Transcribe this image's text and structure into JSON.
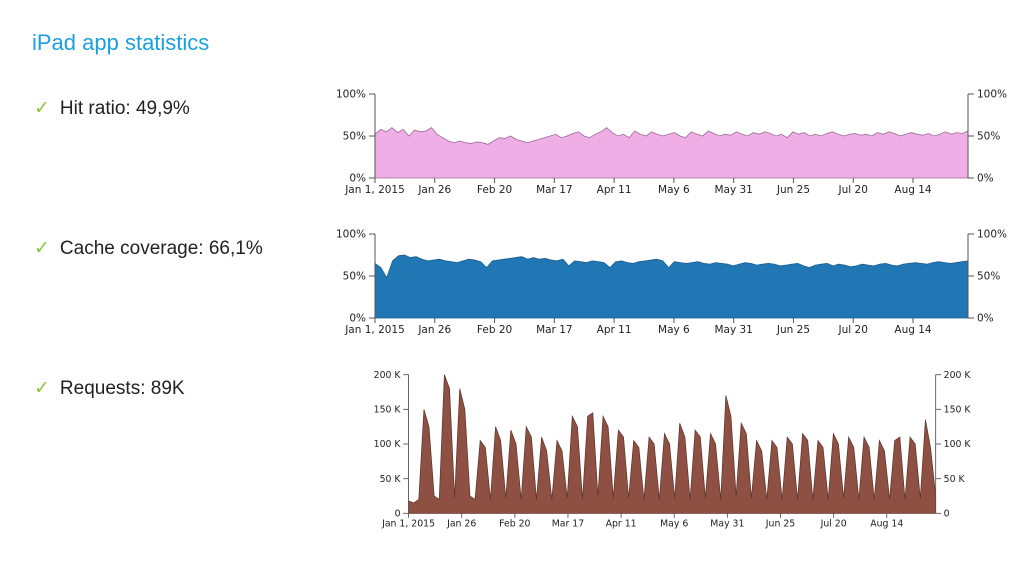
{
  "page": {
    "title": "iPad app statistics",
    "bullets": [
      {
        "check_icon": "✓",
        "text": "Hit ratio: 49,9%"
      },
      {
        "check_icon": "✓",
        "text": "Cache coverage: 66,1%"
      },
      {
        "check_icon": "✓",
        "text": "Requests: 89K"
      }
    ]
  },
  "chart_data": [
    {
      "type": "area",
      "title": "",
      "color": "#efaee6",
      "stroke": "#9a6b94",
      "x_ticks": [
        "Jan 1, 2015",
        "Jan 26",
        "Feb 20",
        "Mar 17",
        "Apr 11",
        "May 6",
        "May 31",
        "Jun 25",
        "Jul 20",
        "Aug 14"
      ],
      "y_ticks": [
        "0%",
        "50%",
        "100%"
      ],
      "y_range": [
        0,
        100
      ],
      "x_range": [
        "2015-01-01",
        "2015-09-06"
      ],
      "grid": false,
      "values": [
        52,
        58,
        55,
        60,
        54,
        58,
        50,
        57,
        55,
        56,
        60,
        52,
        48,
        44,
        42,
        44,
        42,
        41,
        43,
        42,
        40,
        44,
        48,
        47,
        50,
        46,
        44,
        42,
        44,
        46,
        48,
        50,
        52,
        48,
        50,
        53,
        55,
        50,
        48,
        52,
        55,
        60,
        54,
        50,
        52,
        48,
        56,
        52,
        50,
        55,
        52,
        50,
        52,
        54,
        50,
        48,
        55,
        52,
        50,
        56,
        53,
        50,
        52,
        51,
        55,
        52,
        50,
        54,
        52,
        55,
        53,
        50,
        52,
        48,
        55,
        52,
        54,
        50,
        52,
        50,
        53,
        55,
        52,
        50,
        52,
        53,
        51,
        52,
        50,
        54,
        52,
        55,
        53,
        50,
        52,
        54,
        52,
        51,
        53,
        50,
        52,
        55,
        52,
        54,
        53,
        56
      ],
      "series": [
        {
          "name": "",
          "values": []
        }
      ]
    },
    {
      "type": "area",
      "title": "",
      "color": "#2077b4",
      "stroke": "#1a5d8e",
      "x_ticks": [
        "Jan 1, 2015",
        "Jan 26",
        "Feb 20",
        "Mar 17",
        "Apr 11",
        "May 6",
        "May 31",
        "Jun 25",
        "Jul 20",
        "Aug 14"
      ],
      "y_ticks": [
        "0%",
        "50%",
        "100%"
      ],
      "y_range": [
        0,
        100
      ],
      "x_range": [
        "2015-01-01",
        "2015-09-06"
      ],
      "grid": false,
      "values": [
        65,
        60,
        48,
        68,
        74,
        75,
        72,
        73,
        70,
        68,
        69,
        70,
        68,
        67,
        66,
        68,
        70,
        69,
        67,
        60,
        68,
        69,
        70,
        71,
        72,
        73,
        70,
        72,
        70,
        71,
        69,
        68,
        70,
        62,
        68,
        67,
        66,
        68,
        67,
        66,
        60,
        67,
        68,
        66,
        65,
        67,
        68,
        69,
        70,
        68,
        60,
        67,
        66,
        65,
        66,
        67,
        65,
        64,
        66,
        65,
        64,
        62,
        64,
        66,
        65,
        63,
        64,
        65,
        64,
        62,
        63,
        64,
        65,
        62,
        60,
        63,
        64,
        65,
        62,
        64,
        63,
        61,
        62,
        64,
        63,
        62,
        64,
        65,
        63,
        62,
        64,
        65,
        66,
        65,
        64,
        66,
        67,
        66,
        65,
        66,
        67,
        68
      ],
      "series": [
        {
          "name": "",
          "values": []
        }
      ]
    },
    {
      "type": "area",
      "title": "",
      "color": "#8d5043",
      "stroke": "#5e332a",
      "x_ticks": [
        "Jan 1, 2015",
        "Jan 26",
        "Feb 20",
        "Mar 17",
        "Apr 11",
        "May 6",
        "May 31",
        "Jun 25",
        "Jul 20",
        "Aug 14"
      ],
      "y_ticks": [
        "0",
        "50 K",
        "100 K",
        "150 K",
        "200 K"
      ],
      "y_range": [
        0,
        200
      ],
      "x_range": [
        "2015-01-01",
        "2015-09-06"
      ],
      "grid": false,
      "values": [
        18,
        15,
        20,
        150,
        125,
        25,
        20,
        200,
        180,
        22,
        180,
        150,
        25,
        20,
        105,
        95,
        20,
        125,
        105,
        22,
        120,
        100,
        20,
        125,
        110,
        20,
        110,
        90,
        20,
        105,
        90,
        22,
        140,
        125,
        20,
        140,
        145,
        25,
        140,
        125,
        22,
        120,
        110,
        22,
        105,
        95,
        20,
        110,
        100,
        20,
        115,
        100,
        22,
        130,
        110,
        20,
        120,
        110,
        22,
        115,
        100,
        20,
        170,
        140,
        25,
        130,
        115,
        22,
        105,
        90,
        20,
        105,
        95,
        20,
        110,
        100,
        20,
        115,
        105,
        20,
        105,
        95,
        20,
        115,
        100,
        22,
        110,
        95,
        20,
        110,
        95,
        20,
        105,
        90,
        20,
        105,
        110,
        20,
        110,
        100,
        22,
        135,
        95,
        25
      ],
      "series": [
        {
          "name": "",
          "values": []
        }
      ]
    }
  ]
}
